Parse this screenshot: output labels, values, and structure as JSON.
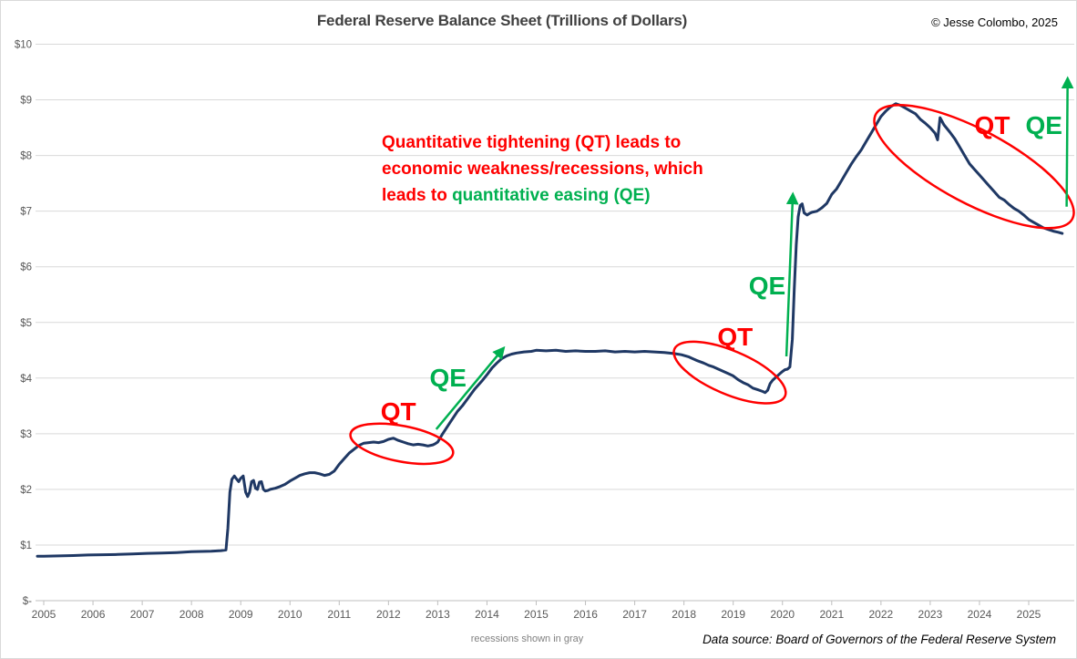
{
  "header": {
    "title": "Federal Reserve Balance Sheet (Trillions of Dollars)",
    "copyright": "© Jesse Colombo, 2025"
  },
  "annotation": {
    "line1": "Quantitative tightening (QT) leads to",
    "line2": "economic weakness/recessions, which",
    "line3_red": "leads to ",
    "line3_green": "quantitative easing (QE)"
  },
  "footer": {
    "recessions_note": "recessions shown in gray",
    "data_source": "Data source: Board of Governors of the Federal Reserve System"
  },
  "colors": {
    "line": "#1f3864",
    "red": "#ff0000",
    "green": "#00b050",
    "grid": "#d9d9d9",
    "axis": "#bfbfbf",
    "tick_label": "#595959",
    "title": "#404040"
  },
  "chart_data": {
    "type": "line",
    "title": "Federal Reserve Balance Sheet (Trillions of Dollars)",
    "xlabel": "",
    "ylabel": "Trillions of Dollars",
    "xlim": [
      2004.85,
      2025.95
    ],
    "ylim": [
      0,
      10
    ],
    "grid": "horizontal",
    "legend": "none",
    "y_ticks": [
      {
        "value": 0,
        "label": "$-"
      },
      {
        "value": 1,
        "label": "$1"
      },
      {
        "value": 2,
        "label": "$2"
      },
      {
        "value": 3,
        "label": "$3"
      },
      {
        "value": 4,
        "label": "$4"
      },
      {
        "value": 5,
        "label": "$5"
      },
      {
        "value": 6,
        "label": "$6"
      },
      {
        "value": 7,
        "label": "$7"
      },
      {
        "value": 8,
        "label": "$8"
      },
      {
        "value": 9,
        "label": "$9"
      },
      {
        "value": 10,
        "label": "$10"
      }
    ],
    "x_ticks": [
      2005,
      2006,
      2007,
      2008,
      2009,
      2010,
      2011,
      2012,
      2013,
      2014,
      2015,
      2016,
      2017,
      2018,
      2019,
      2020,
      2021,
      2022,
      2023,
      2024,
      2025
    ],
    "series": [
      {
        "name": "Fed balance sheet (trillions USD)",
        "points": [
          [
            2004.87,
            0.8
          ],
          [
            2005.0,
            0.8
          ],
          [
            2005.3,
            0.805
          ],
          [
            2005.6,
            0.81
          ],
          [
            2005.9,
            0.82
          ],
          [
            2006.2,
            0.825
          ],
          [
            2006.5,
            0.83
          ],
          [
            2006.8,
            0.84
          ],
          [
            2007.1,
            0.85
          ],
          [
            2007.4,
            0.855
          ],
          [
            2007.7,
            0.865
          ],
          [
            2008.0,
            0.88
          ],
          [
            2008.2,
            0.885
          ],
          [
            2008.4,
            0.89
          ],
          [
            2008.6,
            0.9
          ],
          [
            2008.7,
            0.91
          ],
          [
            2008.74,
            1.3
          ],
          [
            2008.78,
            1.95
          ],
          [
            2008.82,
            2.18
          ],
          [
            2008.87,
            2.24
          ],
          [
            2008.92,
            2.18
          ],
          [
            2008.96,
            2.14
          ],
          [
            2009.0,
            2.2
          ],
          [
            2009.05,
            2.24
          ],
          [
            2009.1,
            1.95
          ],
          [
            2009.14,
            1.87
          ],
          [
            2009.18,
            1.95
          ],
          [
            2009.22,
            2.14
          ],
          [
            2009.26,
            2.16
          ],
          [
            2009.3,
            2.02
          ],
          [
            2009.34,
            2.0
          ],
          [
            2009.38,
            2.13
          ],
          [
            2009.42,
            2.14
          ],
          [
            2009.46,
            2.0
          ],
          [
            2009.5,
            1.97
          ],
          [
            2009.55,
            1.98
          ],
          [
            2009.6,
            2.0
          ],
          [
            2009.7,
            2.02
          ],
          [
            2009.8,
            2.05
          ],
          [
            2009.9,
            2.09
          ],
          [
            2010.0,
            2.15
          ],
          [
            2010.1,
            2.2
          ],
          [
            2010.2,
            2.25
          ],
          [
            2010.3,
            2.28
          ],
          [
            2010.4,
            2.3
          ],
          [
            2010.5,
            2.3
          ],
          [
            2010.6,
            2.28
          ],
          [
            2010.7,
            2.25
          ],
          [
            2010.8,
            2.27
          ],
          [
            2010.9,
            2.33
          ],
          [
            2011.0,
            2.45
          ],
          [
            2011.1,
            2.55
          ],
          [
            2011.2,
            2.65
          ],
          [
            2011.3,
            2.72
          ],
          [
            2011.4,
            2.79
          ],
          [
            2011.5,
            2.83
          ],
          [
            2011.6,
            2.84
          ],
          [
            2011.7,
            2.85
          ],
          [
            2011.8,
            2.84
          ],
          [
            2011.9,
            2.86
          ],
          [
            2012.0,
            2.9
          ],
          [
            2012.1,
            2.92
          ],
          [
            2012.15,
            2.9
          ],
          [
            2012.2,
            2.88
          ],
          [
            2012.3,
            2.85
          ],
          [
            2012.4,
            2.82
          ],
          [
            2012.5,
            2.8
          ],
          [
            2012.6,
            2.81
          ],
          [
            2012.7,
            2.8
          ],
          [
            2012.8,
            2.78
          ],
          [
            2012.9,
            2.8
          ],
          [
            2012.95,
            2.82
          ],
          [
            2013.0,
            2.85
          ],
          [
            2013.1,
            3.0
          ],
          [
            2013.25,
            3.2
          ],
          [
            2013.4,
            3.4
          ],
          [
            2013.5,
            3.5
          ],
          [
            2013.6,
            3.62
          ],
          [
            2013.75,
            3.8
          ],
          [
            2013.9,
            3.95
          ],
          [
            2014.0,
            4.06
          ],
          [
            2014.1,
            4.18
          ],
          [
            2014.2,
            4.27
          ],
          [
            2014.3,
            4.35
          ],
          [
            2014.4,
            4.4
          ],
          [
            2014.5,
            4.43
          ],
          [
            2014.6,
            4.45
          ],
          [
            2014.75,
            4.47
          ],
          [
            2014.9,
            4.48
          ],
          [
            2015.0,
            4.5
          ],
          [
            2015.2,
            4.49
          ],
          [
            2015.4,
            4.5
          ],
          [
            2015.6,
            4.48
          ],
          [
            2015.8,
            4.49
          ],
          [
            2016.0,
            4.48
          ],
          [
            2016.2,
            4.48
          ],
          [
            2016.4,
            4.49
          ],
          [
            2016.6,
            4.47
          ],
          [
            2016.8,
            4.48
          ],
          [
            2017.0,
            4.47
          ],
          [
            2017.2,
            4.48
          ],
          [
            2017.4,
            4.47
          ],
          [
            2017.6,
            4.46
          ],
          [
            2017.8,
            4.44
          ],
          [
            2017.95,
            4.42
          ],
          [
            2018.1,
            4.38
          ],
          [
            2018.25,
            4.32
          ],
          [
            2018.4,
            4.27
          ],
          [
            2018.5,
            4.23
          ],
          [
            2018.6,
            4.2
          ],
          [
            2018.75,
            4.14
          ],
          [
            2018.9,
            4.08
          ],
          [
            2019.0,
            4.04
          ],
          [
            2019.1,
            3.97
          ],
          [
            2019.2,
            3.92
          ],
          [
            2019.3,
            3.88
          ],
          [
            2019.4,
            3.82
          ],
          [
            2019.5,
            3.79
          ],
          [
            2019.6,
            3.76
          ],
          [
            2019.65,
            3.74
          ],
          [
            2019.7,
            3.78
          ],
          [
            2019.75,
            3.9
          ],
          [
            2019.8,
            3.96
          ],
          [
            2019.85,
            4.0
          ],
          [
            2019.9,
            4.04
          ],
          [
            2019.95,
            4.08
          ],
          [
            2020.0,
            4.12
          ],
          [
            2020.05,
            4.15
          ],
          [
            2020.1,
            4.16
          ],
          [
            2020.15,
            4.2
          ],
          [
            2020.2,
            4.7
          ],
          [
            2020.24,
            5.6
          ],
          [
            2020.28,
            6.4
          ],
          [
            2020.32,
            6.9
          ],
          [
            2020.36,
            7.1
          ],
          [
            2020.4,
            7.13
          ],
          [
            2020.44,
            6.97
          ],
          [
            2020.5,
            6.93
          ],
          [
            2020.55,
            6.96
          ],
          [
            2020.6,
            6.98
          ],
          [
            2020.7,
            7.0
          ],
          [
            2020.8,
            7.06
          ],
          [
            2020.9,
            7.14
          ],
          [
            2021.0,
            7.3
          ],
          [
            2021.1,
            7.4
          ],
          [
            2021.2,
            7.55
          ],
          [
            2021.3,
            7.7
          ],
          [
            2021.4,
            7.85
          ],
          [
            2021.5,
            7.98
          ],
          [
            2021.6,
            8.1
          ],
          [
            2021.7,
            8.25
          ],
          [
            2021.8,
            8.4
          ],
          [
            2021.9,
            8.55
          ],
          [
            2022.0,
            8.7
          ],
          [
            2022.1,
            8.8
          ],
          [
            2022.2,
            8.88
          ],
          [
            2022.3,
            8.93
          ],
          [
            2022.4,
            8.9
          ],
          [
            2022.5,
            8.85
          ],
          [
            2022.6,
            8.8
          ],
          [
            2022.7,
            8.75
          ],
          [
            2022.8,
            8.65
          ],
          [
            2022.9,
            8.58
          ],
          [
            2023.0,
            8.5
          ],
          [
            2023.1,
            8.4
          ],
          [
            2023.15,
            8.28
          ],
          [
            2023.2,
            8.68
          ],
          [
            2023.28,
            8.55
          ],
          [
            2023.4,
            8.42
          ],
          [
            2023.5,
            8.3
          ],
          [
            2023.6,
            8.15
          ],
          [
            2023.7,
            8.0
          ],
          [
            2023.8,
            7.85
          ],
          [
            2023.9,
            7.75
          ],
          [
            2024.0,
            7.65
          ],
          [
            2024.1,
            7.55
          ],
          [
            2024.2,
            7.45
          ],
          [
            2024.3,
            7.35
          ],
          [
            2024.4,
            7.25
          ],
          [
            2024.5,
            7.2
          ],
          [
            2024.6,
            7.12
          ],
          [
            2024.7,
            7.05
          ],
          [
            2024.8,
            7.0
          ],
          [
            2024.9,
            6.93
          ],
          [
            2025.0,
            6.85
          ],
          [
            2025.1,
            6.8
          ],
          [
            2025.2,
            6.75
          ],
          [
            2025.3,
            6.7
          ],
          [
            2025.4,
            6.67
          ],
          [
            2025.5,
            6.64
          ],
          [
            2025.6,
            6.62
          ],
          [
            2025.68,
            6.6
          ]
        ]
      }
    ],
    "annotations": {
      "labels": [
        {
          "name": "qt-label-1",
          "text": "QT",
          "year": 2012.2,
          "value": 3.41,
          "color_key": "red"
        },
        {
          "name": "qe-label-1",
          "text": "QE",
          "year": 2013.21,
          "value": 4.01,
          "color_key": "green"
        },
        {
          "name": "qt-label-2",
          "text": "QT",
          "year": 2019.04,
          "value": 4.75,
          "color_key": "red"
        },
        {
          "name": "qe-label-2",
          "text": "QE",
          "year": 2019.69,
          "value": 5.67,
          "color_key": "green"
        },
        {
          "name": "qt-label-3",
          "text": "QT",
          "year": 2024.26,
          "value": 8.55,
          "color_key": "red"
        },
        {
          "name": "qe-label-3",
          "text": "QE",
          "year": 2025.31,
          "value": 8.55,
          "color_key": "green"
        }
      ],
      "ellipses": [
        {
          "name": "qt-ellipse-1",
          "center_year": 2012.27,
          "center_value": 2.82,
          "rx_years": 1.06,
          "ry_trillions": 0.32,
          "rotation_deg": 11
        },
        {
          "name": "qt-ellipse-2",
          "center_year": 2018.93,
          "center_value": 4.1,
          "rx_years": 1.22,
          "ry_trillions": 0.39,
          "rotation_deg": 23
        },
        {
          "name": "qt-ellipse-3",
          "center_year": 2023.89,
          "center_value": 7.8,
          "rx_years": 2.26,
          "ry_trillions": 0.66,
          "rotation_deg": 28
        }
      ],
      "arrows": [
        {
          "name": "qe-arrow-1",
          "from_year": 2012.97,
          "from_value": 3.08,
          "to_year": 2014.32,
          "to_value": 4.52
        },
        {
          "name": "qe-arrow-2",
          "from_year": 2020.08,
          "from_value": 4.39,
          "to_year": 2020.21,
          "to_value": 7.28
        },
        {
          "name": "qe-arrow-3",
          "from_year": 2025.77,
          "from_value": 7.08,
          "to_year": 2025.79,
          "to_value": 9.36
        }
      ]
    }
  }
}
